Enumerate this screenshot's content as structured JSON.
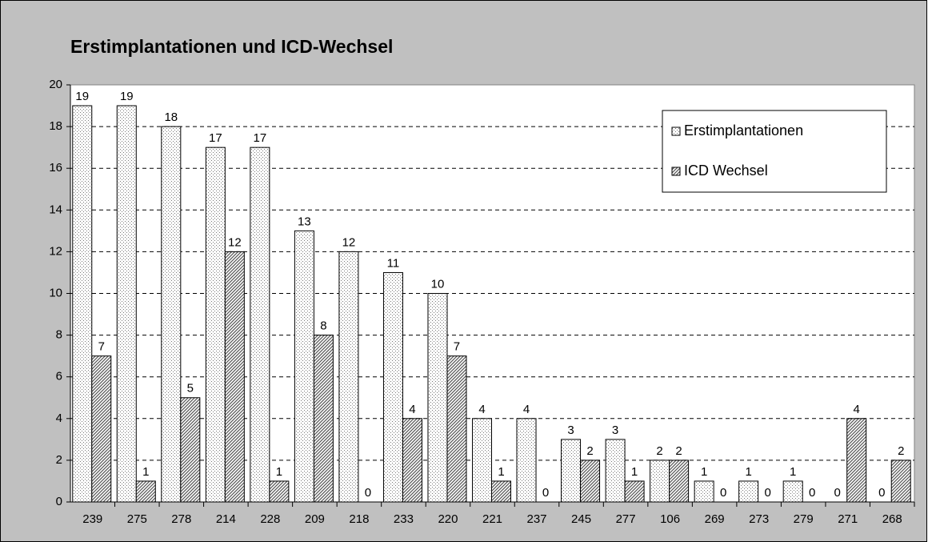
{
  "chart_data": {
    "type": "bar",
    "title": "Erstimplantationen und ICD-Wechsel",
    "categories": [
      "239",
      "275",
      "278",
      "214",
      "228",
      "209",
      "218",
      "233",
      "220",
      "221",
      "237",
      "245",
      "277",
      "106",
      "269",
      "273",
      "279",
      "271",
      "268"
    ],
    "series": [
      {
        "name": "Erstimplantationen",
        "color": "#ffffff",
        "values": [
          19,
          19,
          18,
          17,
          17,
          13,
          12,
          11,
          10,
          4,
          4,
          3,
          3,
          2,
          1,
          1,
          1,
          0,
          0
        ]
      },
      {
        "name": "ICD Wechsel",
        "color": "#ffffff",
        "values": [
          7,
          1,
          5,
          12,
          1,
          8,
          0,
          4,
          7,
          1,
          0,
          2,
          1,
          2,
          0,
          0,
          0,
          4,
          2
        ]
      }
    ],
    "ylim": [
      0,
      20
    ],
    "yticks": [
      0,
      2,
      4,
      6,
      8,
      10,
      12,
      14,
      16,
      18,
      20
    ],
    "grid": true,
    "legend": "upper right"
  }
}
